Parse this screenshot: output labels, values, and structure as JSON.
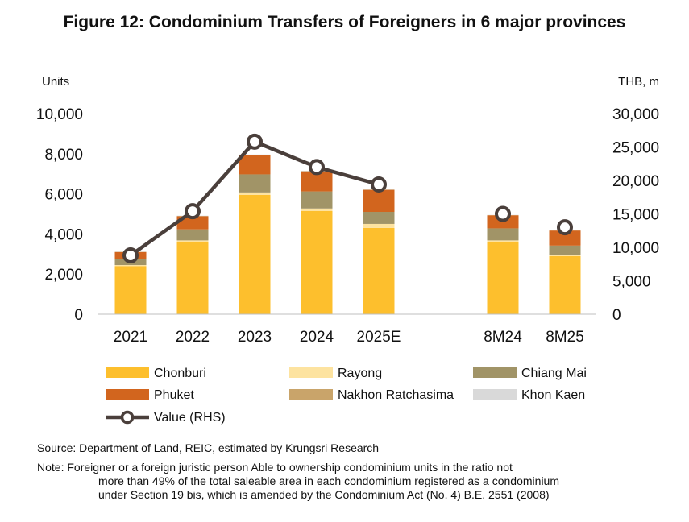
{
  "chart_data": {
    "type": "bar",
    "title": "Figure 12: Condominium Transfers of Foreigners in 6 major provinces",
    "ylabel_left": "Units",
    "ylabel_right": "THB, m",
    "ylim_left": [
      0,
      10000
    ],
    "ylim_right": [
      0,
      30000
    ],
    "yticks_left": [
      "0",
      "2,000",
      "4,000",
      "6,000",
      "8,000",
      "10,000"
    ],
    "yticks_right": [
      "0",
      "5,000",
      "10,000",
      "15,000",
      "20,000",
      "25,000",
      "30,000"
    ],
    "categories": [
      "2021",
      "2022",
      "2023",
      "2024",
      "2025E",
      "8M24",
      "8M25"
    ],
    "series": [
      {
        "name": "Chonburi",
        "color": "#FDBF2D",
        "values": [
          2400,
          3600,
          5950,
          5150,
          4300,
          3600,
          2900
        ]
      },
      {
        "name": "Rayong",
        "color": "#FDE3A0",
        "values": [
          50,
          80,
          120,
          120,
          200,
          80,
          70
        ]
      },
      {
        "name": "Chiang Mai",
        "color": "#A19467",
        "values": [
          300,
          550,
          900,
          850,
          600,
          600,
          450
        ]
      },
      {
        "name": "Phuket",
        "color": "#D2651E",
        "values": [
          350,
          650,
          950,
          1000,
          1100,
          650,
          750
        ]
      },
      {
        "name": "Nakhon Ratchasima",
        "color": "#C9A46A",
        "values": [
          10,
          15,
          20,
          15,
          15,
          10,
          10
        ]
      },
      {
        "name": "Khon Kaen",
        "color": "#D9D9D9",
        "values": [
          10,
          15,
          20,
          15,
          15,
          10,
          10
        ]
      }
    ],
    "line": {
      "name": "Value (RHS)",
      "color": "#4A3F3B",
      "values": [
        8800,
        15400,
        25800,
        22000,
        19400,
        null,
        null
      ],
      "values_8m": [
        15000,
        13000
      ]
    }
  },
  "legend": [
    {
      "label": "Chonburi",
      "color": "#FDBF2D",
      "kind": "box"
    },
    {
      "label": "Rayong",
      "color": "#FDE3A0",
      "kind": "box"
    },
    {
      "label": "Chiang Mai",
      "color": "#A19467",
      "kind": "box"
    },
    {
      "label": "Phuket",
      "color": "#D2651E",
      "kind": "box"
    },
    {
      "label": "Nakhon Ratchasima",
      "color": "#C9A46A",
      "kind": "box"
    },
    {
      "label": "Khon Kaen",
      "color": "#D9D9D9",
      "kind": "box"
    },
    {
      "label": "Value (RHS)",
      "color": "#4A3F3B",
      "kind": "line"
    }
  ],
  "source": "Source: Department of Land, REIC, estimated by Krungsri Research",
  "note": {
    "line1": "Note: Foreigner or a foreign juristic person Able to ownership condominium units in the ratio not",
    "line2": "more than 49% of the total saleable area in each condominium registered as a condominium",
    "line3": "under Section 19 bis, which is amended by the Condominium Act (No. 4) B.E. 2551 (2008)"
  }
}
